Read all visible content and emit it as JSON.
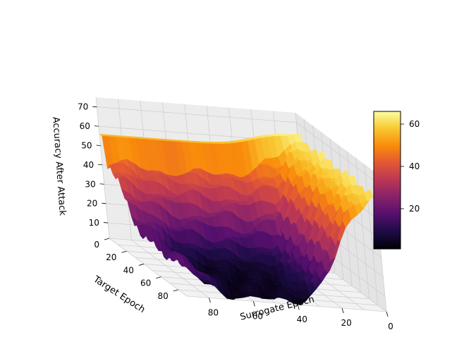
{
  "chart_data": {
    "type": "surface3d",
    "xlabel": "Surrogate Epoch",
    "ylabel": "Target Epoch",
    "zlabel": "Accuracy After Attack",
    "x_ticks": [
      "0",
      "20",
      "40",
      "60",
      "80"
    ],
    "y_ticks": [
      "0",
      "20",
      "40",
      "60",
      "80"
    ],
    "z_ticks": [
      "10",
      "20",
      "30",
      "40",
      "50",
      "60",
      "70"
    ],
    "xlim": [
      0,
      90
    ],
    "ylim": [
      0,
      90
    ],
    "zlim": [
      2,
      75
    ],
    "colormap": "inferno",
    "colorbar": {
      "ticks": [
        "20",
        "40",
        "60"
      ],
      "range": [
        1,
        66
      ]
    },
    "grid": true,
    "grid_axes": [
      "Target Epoch",
      "Surrogate Epoch"
    ],
    "grid_values": [
      0,
      10,
      20,
      30,
      40,
      50,
      60,
      70,
      80,
      90
    ],
    "surface_description": "Accuracy is high (~55-65) when either epoch is small and drops to ~2-10 when both Target Epoch and Surrogate Epoch are large (valley near 60-90, 40-80)."
  }
}
